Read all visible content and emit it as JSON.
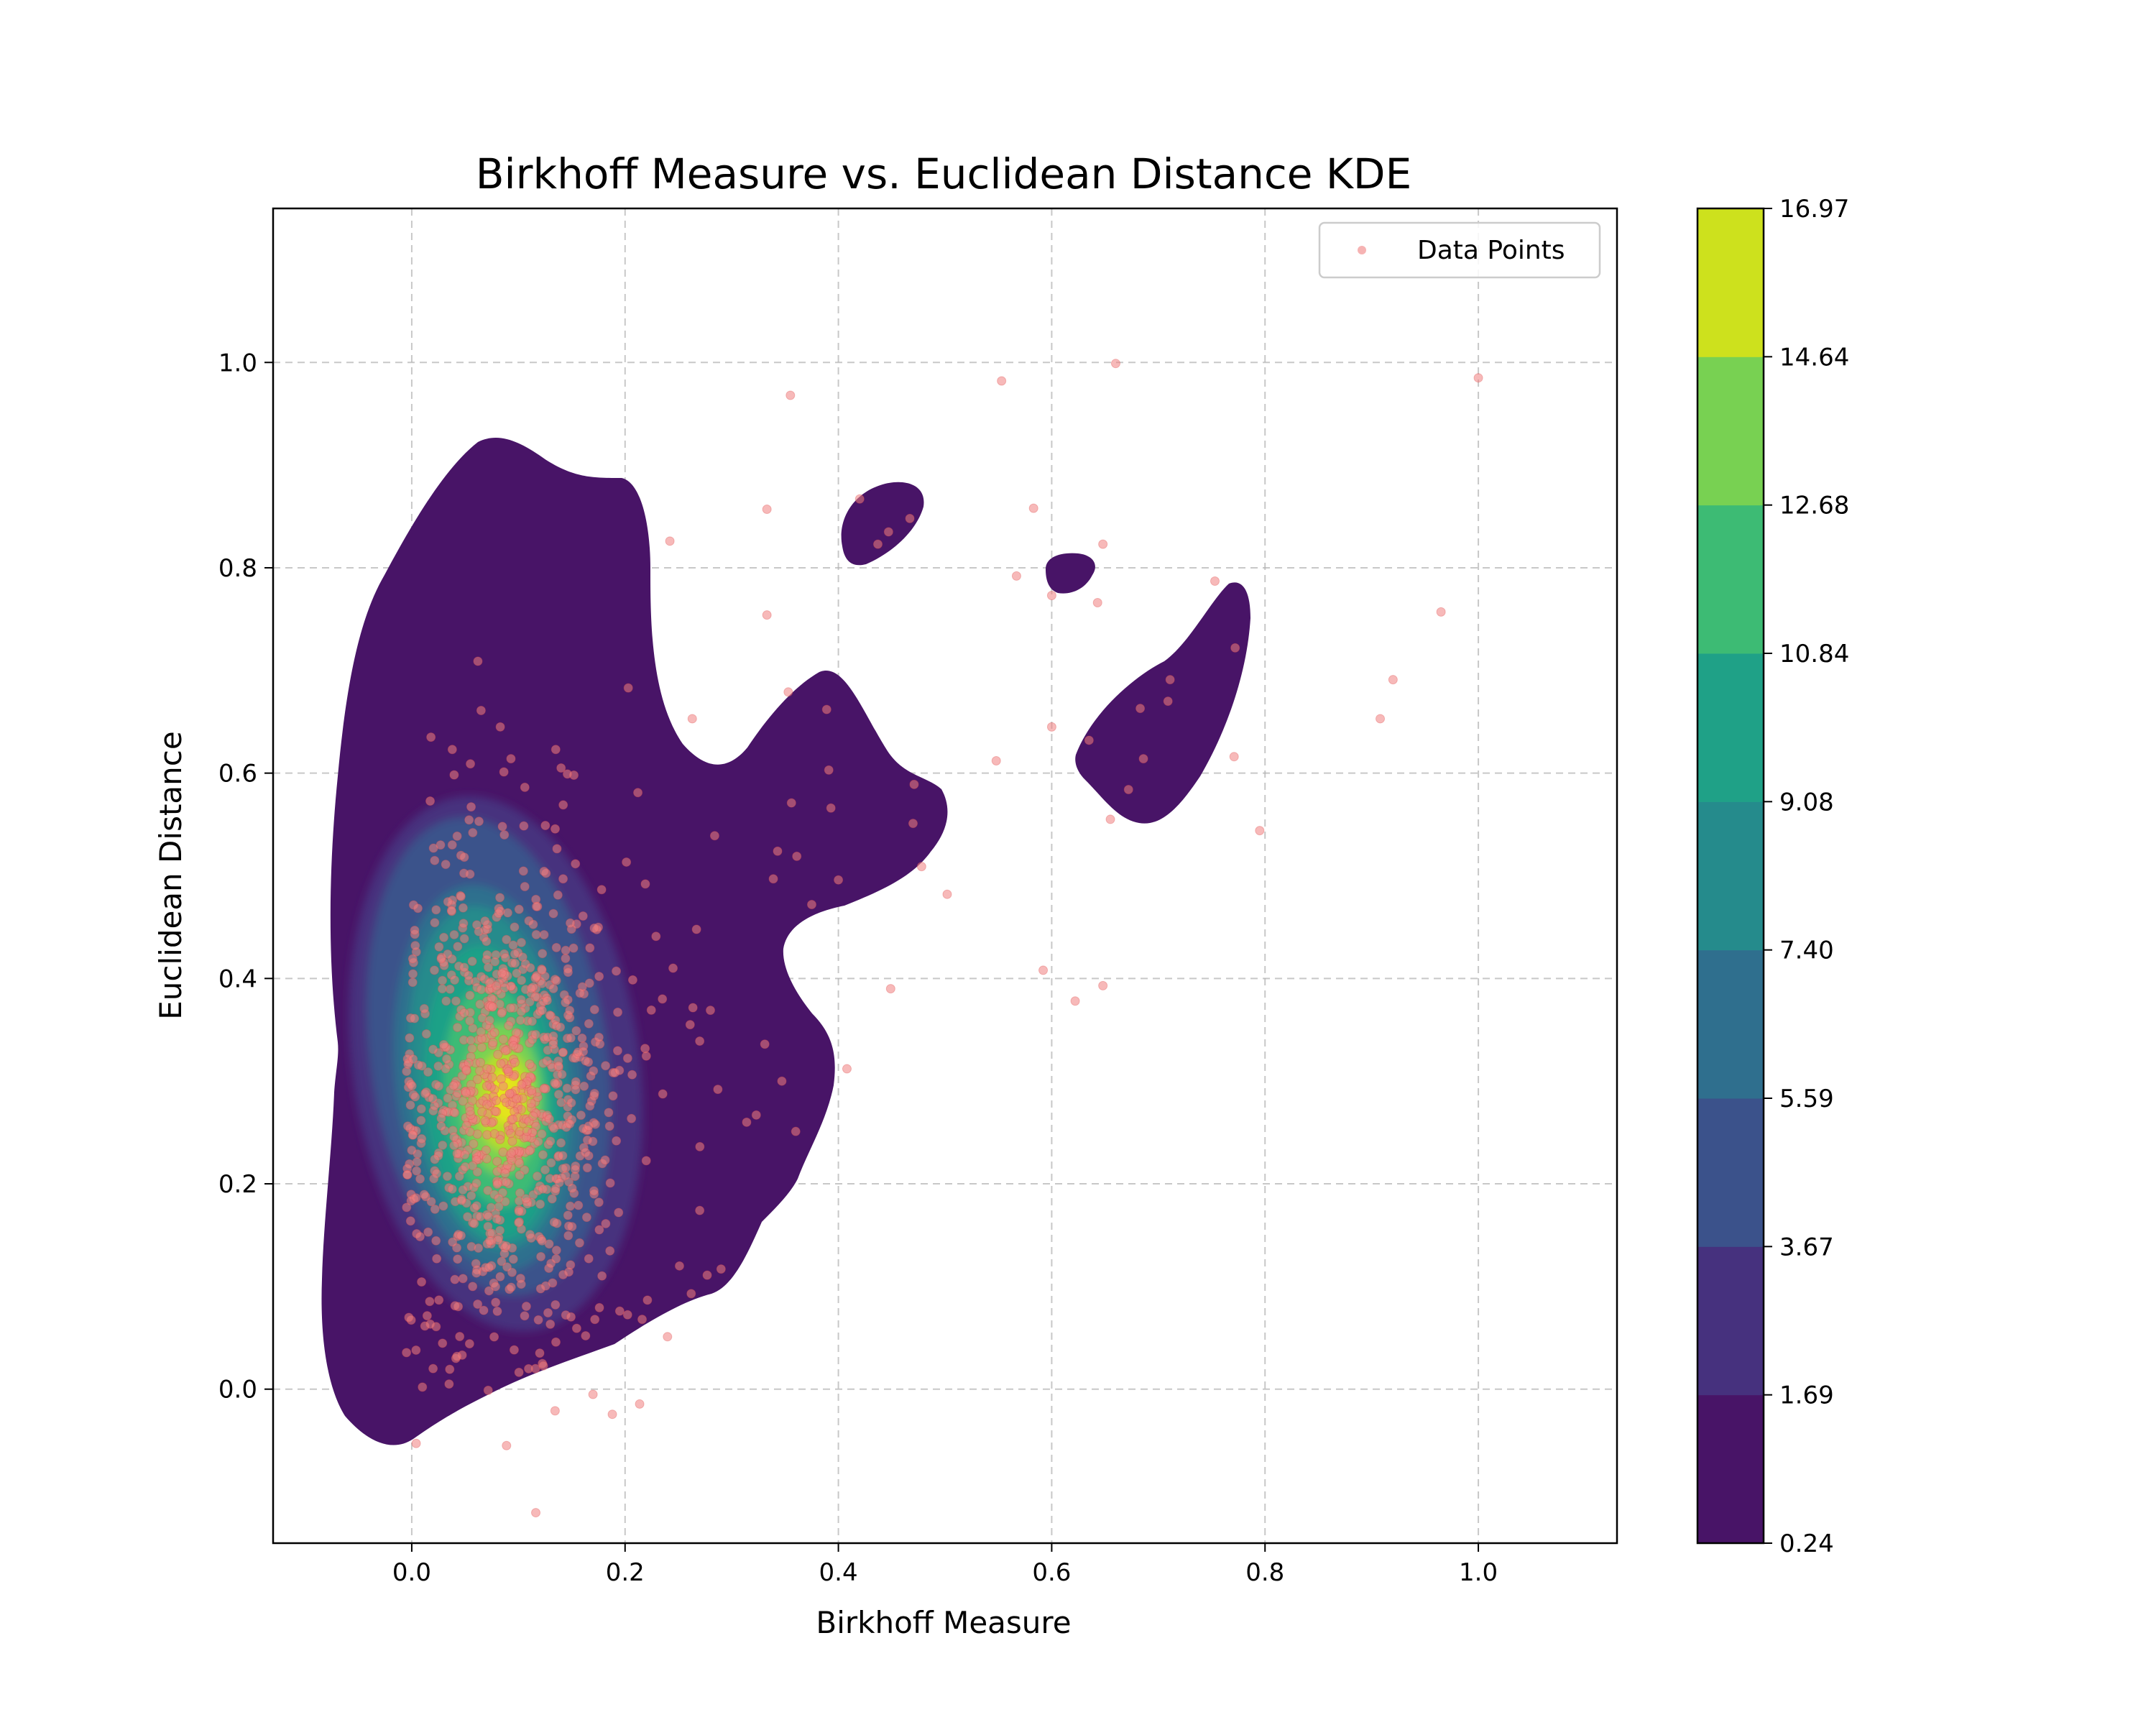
{
  "chart_data": {
    "type": "scatter",
    "subtype": "kde-filled-contour",
    "title": "Birkhoff Measure vs. Euclidean Distance KDE",
    "xlabel": "Birkhoff Measure",
    "ylabel": "Euclidean Distance",
    "xlim": [
      -0.13,
      1.13
    ],
    "ylim": [
      -0.15,
      1.15
    ],
    "xticks": [
      "0.0",
      "0.2",
      "0.4",
      "0.6",
      "0.8",
      "1.0"
    ],
    "yticks": [
      "0.0",
      "0.2",
      "0.4",
      "0.6",
      "0.8",
      "1.0"
    ],
    "grid": true,
    "legend": {
      "position": "top-right",
      "entries": [
        "Data Points"
      ]
    },
    "colorbar": {
      "levels": [
        "0.24",
        "1.69",
        "3.67",
        "5.59",
        "7.40",
        "9.08",
        "10.84",
        "12.68",
        "14.64",
        "16.97"
      ],
      "colors": [
        "#440154",
        "#472d7b",
        "#3b528b",
        "#2c728e",
        "#21918c",
        "#28ae80",
        "#5ec962",
        "#addc30",
        "#fde725"
      ],
      "display_colors": [
        "#481467",
        "#46317e",
        "#3b528b",
        "#2f6f8e",
        "#258b8c",
        "#1fa187",
        "#3dbb74",
        "#78d152",
        "#cde11d"
      ]
    },
    "kde_peak": {
      "x": 0.09,
      "y": 0.29
    },
    "cluster": {
      "center_x": 0.09,
      "center_y": 0.28,
      "sd_x": 0.055,
      "sd_y": 0.115,
      "count": 900
    },
    "series": [
      {
        "name": "Data Points",
        "color": "#f08080",
        "points": [
          [
            0.355,
            0.968
          ],
          [
            0.553,
            0.982
          ],
          [
            0.66,
            0.999
          ],
          [
            1.0,
            0.985
          ],
          [
            0.42,
            0.867
          ],
          [
            0.447,
            0.835
          ],
          [
            0.437,
            0.823
          ],
          [
            0.467,
            0.848
          ],
          [
            0.333,
            0.857
          ],
          [
            0.242,
            0.826
          ],
          [
            0.583,
            0.858
          ],
          [
            0.648,
            0.823
          ],
          [
            0.567,
            0.792
          ],
          [
            0.6,
            0.773
          ],
          [
            0.643,
            0.766
          ],
          [
            0.333,
            0.754
          ],
          [
            0.753,
            0.787
          ],
          [
            0.965,
            0.757
          ],
          [
            0.772,
            0.722
          ],
          [
            0.92,
            0.691
          ],
          [
            0.711,
            0.691
          ],
          [
            0.709,
            0.67
          ],
          [
            0.908,
            0.653
          ],
          [
            0.683,
            0.663
          ],
          [
            0.6,
            0.645
          ],
          [
            0.635,
            0.632
          ],
          [
            0.771,
            0.616
          ],
          [
            0.686,
            0.614
          ],
          [
            0.548,
            0.612
          ],
          [
            0.672,
            0.584
          ],
          [
            0.655,
            0.555
          ],
          [
            0.795,
            0.544
          ],
          [
            0.353,
            0.679
          ],
          [
            0.389,
            0.662
          ],
          [
            0.263,
            0.653
          ],
          [
            0.203,
            0.683
          ],
          [
            0.502,
            0.482
          ],
          [
            0.592,
            0.408
          ],
          [
            0.622,
            0.378
          ],
          [
            0.648,
            0.393
          ],
          [
            0.449,
            0.39
          ],
          [
            0.408,
            0.312
          ],
          [
            0.391,
            0.603
          ],
          [
            0.393,
            0.566
          ],
          [
            0.356,
            0.571
          ],
          [
            0.471,
            0.589
          ],
          [
            0.47,
            0.551
          ],
          [
            0.478,
            0.509
          ],
          [
            0.361,
            0.519
          ],
          [
            0.339,
            0.497
          ],
          [
            0.375,
            0.472
          ],
          [
            0.4,
            0.496
          ],
          [
            0.284,
            0.539
          ],
          [
            0.343,
            0.524
          ],
          [
            0.331,
            0.336
          ],
          [
            0.347,
            0.3
          ],
          [
            0.323,
            0.267
          ],
          [
            0.314,
            0.26
          ],
          [
            0.36,
            0.251
          ],
          [
            0.287,
            0.292
          ],
          [
            0.28,
            0.369
          ],
          [
            0.27,
            0.339
          ],
          [
            0.219,
            0.492
          ],
          [
            0.229,
            0.441
          ],
          [
            0.245,
            0.41
          ],
          [
            0.235,
            0.38
          ],
          [
            0.29,
            0.117
          ],
          [
            0.277,
            0.111
          ],
          [
            0.262,
            0.093
          ],
          [
            0.251,
            0.12
          ],
          [
            0.216,
            0.068
          ],
          [
            0.195,
            0.076
          ],
          [
            0.163,
            0.052
          ],
          [
            0.116,
            0.02
          ],
          [
            0.27,
            0.174
          ],
          [
            0.261,
            0.355
          ],
          [
            0.062,
            0.709
          ],
          [
            0.065,
            0.661
          ],
          [
            0.083,
            0.645
          ],
          [
            0.018,
            0.635
          ],
          [
            0.038,
            0.623
          ],
          [
            0.093,
            0.614
          ],
          [
            0.14,
            0.605
          ],
          [
            0.135,
            0.623
          ],
          [
            0.152,
            0.598
          ],
          [
            0.055,
            0.609
          ],
          [
            0.212,
            0.581
          ],
          [
            0.142,
            0.569
          ],
          [
            0.085,
            0.548
          ],
          [
            0.063,
            0.553
          ],
          [
            0.027,
            0.53
          ],
          [
            0.01,
            0.002
          ],
          [
            0.035,
            0.005
          ],
          [
            0.02,
            0.02
          ],
          [
            0.004,
            0.038
          ]
        ]
      }
    ]
  }
}
